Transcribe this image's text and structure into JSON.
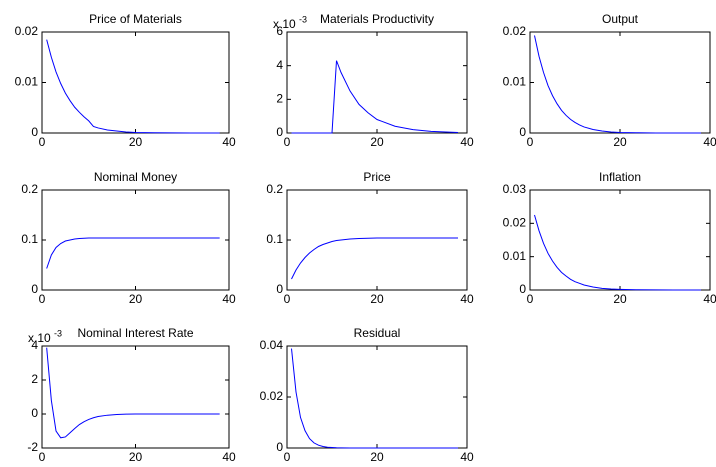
{
  "chart_data": [
    {
      "type": "line",
      "title": "Price of Materials",
      "color": "#0000ff",
      "x": [
        1,
        2,
        3,
        4,
        5,
        6,
        7,
        8,
        9,
        10,
        11,
        12,
        14,
        16,
        18,
        20,
        24,
        28,
        32,
        38
      ],
      "values": [
        0.0185,
        0.015,
        0.0121,
        0.0098,
        0.0079,
        0.0064,
        0.0051,
        0.0041,
        0.0032,
        0.0024,
        0.0013,
        0.001,
        0.0006,
        0.0004,
        0.0002,
        0.0001,
        5e-05,
        2e-05,
        1e-05,
        0
      ],
      "xlim": [
        0,
        40
      ],
      "xticks": [
        0,
        20,
        40
      ],
      "ylim": [
        0,
        0.02
      ],
      "yticks": [
        0,
        0.01,
        0.02
      ]
    },
    {
      "type": "line",
      "title": "Materials Productivity",
      "exponent_label": "x 10",
      "exponent": "-3",
      "color": "#0000ff",
      "x": [
        1,
        2,
        3,
        4,
        5,
        6,
        7,
        8,
        9,
        10,
        11,
        12,
        14,
        16,
        18,
        20,
        24,
        28,
        32,
        38
      ],
      "values": [
        0,
        0,
        0,
        0,
        0,
        0,
        0,
        0,
        0,
        0,
        4.3,
        3.6,
        2.5,
        1.7,
        1.2,
        0.8,
        0.4,
        0.2,
        0.1,
        0.03
      ],
      "xlim": [
        0,
        40
      ],
      "xticks": [
        0,
        20,
        40
      ],
      "ylim": [
        0,
        6
      ],
      "yticks": [
        0,
        2,
        4,
        6
      ]
    },
    {
      "type": "line",
      "title": "Output",
      "color": "#0000ff",
      "x": [
        1,
        2,
        3,
        4,
        5,
        6,
        7,
        8,
        9,
        10,
        11,
        12,
        14,
        16,
        18,
        20,
        24,
        28,
        32,
        38
      ],
      "values": [
        0.0193,
        0.0152,
        0.012,
        0.0094,
        0.0074,
        0.0058,
        0.0045,
        0.0035,
        0.0027,
        0.0021,
        0.0016,
        0.0012,
        0.0007,
        0.0004,
        0.0002,
        0.0001,
        4e-05,
        1e-05,
        0,
        0
      ],
      "xlim": [
        0,
        40
      ],
      "xticks": [
        0,
        20,
        40
      ],
      "ylim": [
        0,
        0.02
      ],
      "yticks": [
        0,
        0.01,
        0.02
      ]
    },
    {
      "type": "line",
      "title": "Nominal Money",
      "color": "#0000ff",
      "x": [
        1,
        2,
        3,
        4,
        5,
        6,
        7,
        8,
        9,
        10,
        11,
        12,
        14,
        16,
        18,
        20,
        24,
        28,
        32,
        38
      ],
      "values": [
        0.043,
        0.07,
        0.085,
        0.093,
        0.098,
        0.1,
        0.102,
        0.103,
        0.1035,
        0.104,
        0.104,
        0.104,
        0.104,
        0.104,
        0.104,
        0.104,
        0.104,
        0.104,
        0.104,
        0.104
      ],
      "xlim": [
        0,
        40
      ],
      "xticks": [
        0,
        20,
        40
      ],
      "ylim": [
        0,
        0.2
      ],
      "yticks": [
        0,
        0.1,
        0.2
      ]
    },
    {
      "type": "line",
      "title": "Price",
      "color": "#0000ff",
      "x": [
        1,
        2,
        3,
        4,
        5,
        6,
        7,
        8,
        9,
        10,
        11,
        12,
        14,
        16,
        18,
        20,
        24,
        28,
        32,
        38
      ],
      "values": [
        0.022,
        0.04,
        0.054,
        0.065,
        0.074,
        0.081,
        0.087,
        0.091,
        0.094,
        0.097,
        0.099,
        0.1,
        0.102,
        0.103,
        0.1035,
        0.104,
        0.104,
        0.104,
        0.104,
        0.104
      ],
      "xlim": [
        0,
        40
      ],
      "xticks": [
        0,
        20,
        40
      ],
      "ylim": [
        0,
        0.2
      ],
      "yticks": [
        0,
        0.1,
        0.2
      ]
    },
    {
      "type": "line",
      "title": "Inflation",
      "color": "#0000ff",
      "x": [
        1,
        2,
        3,
        4,
        5,
        6,
        7,
        8,
        9,
        10,
        11,
        12,
        14,
        16,
        18,
        20,
        24,
        28,
        32,
        38
      ],
      "values": [
        0.0225,
        0.0178,
        0.014,
        0.011,
        0.0087,
        0.0068,
        0.0053,
        0.0042,
        0.0032,
        0.0025,
        0.002,
        0.0015,
        0.0009,
        0.0005,
        0.0003,
        0.0002,
        6e-05,
        2e-05,
        0,
        0
      ],
      "xlim": [
        0,
        40
      ],
      "xticks": [
        0,
        20,
        40
      ],
      "ylim": [
        0,
        0.03
      ],
      "yticks": [
        0,
        0.01,
        0.02,
        0.03
      ]
    },
    {
      "type": "line",
      "title": "Nominal Interest Rate",
      "exponent_label": "x 10",
      "exponent": "-3",
      "color": "#0000ff",
      "x": [
        1,
        2,
        3,
        4,
        5,
        6,
        7,
        8,
        9,
        10,
        11,
        12,
        14,
        16,
        18,
        20,
        24,
        28,
        32,
        38
      ],
      "values": [
        3.9,
        0.8,
        -1,
        -1.4,
        -1.35,
        -1.1,
        -0.85,
        -0.62,
        -0.45,
        -0.32,
        -0.22,
        -0.15,
        -0.07,
        -0.03,
        -0.01,
        0,
        0,
        0,
        0,
        0
      ],
      "xlim": [
        0,
        40
      ],
      "xticks": [
        0,
        20,
        40
      ],
      "ylim": [
        -2,
        4
      ],
      "yticks": [
        -2,
        0,
        2,
        4
      ]
    },
    {
      "type": "line",
      "title": "Residual",
      "color": "#0000ff",
      "x": [
        1,
        2,
        3,
        4,
        5,
        6,
        7,
        8,
        9,
        10,
        11,
        12,
        14,
        16,
        18,
        20,
        24,
        28,
        32,
        38
      ],
      "values": [
        0.039,
        0.022,
        0.012,
        0.0068,
        0.0037,
        0.002,
        0.0011,
        0.0006,
        0.0003,
        0.0002,
        0.0001,
        5e-05,
        1e-05,
        0,
        0,
        0,
        0,
        0,
        0,
        0
      ],
      "xlim": [
        0,
        40
      ],
      "xticks": [
        0,
        20,
        40
      ],
      "ylim": [
        0,
        0.04
      ],
      "yticks": [
        0,
        0.02,
        0.04
      ]
    }
  ]
}
